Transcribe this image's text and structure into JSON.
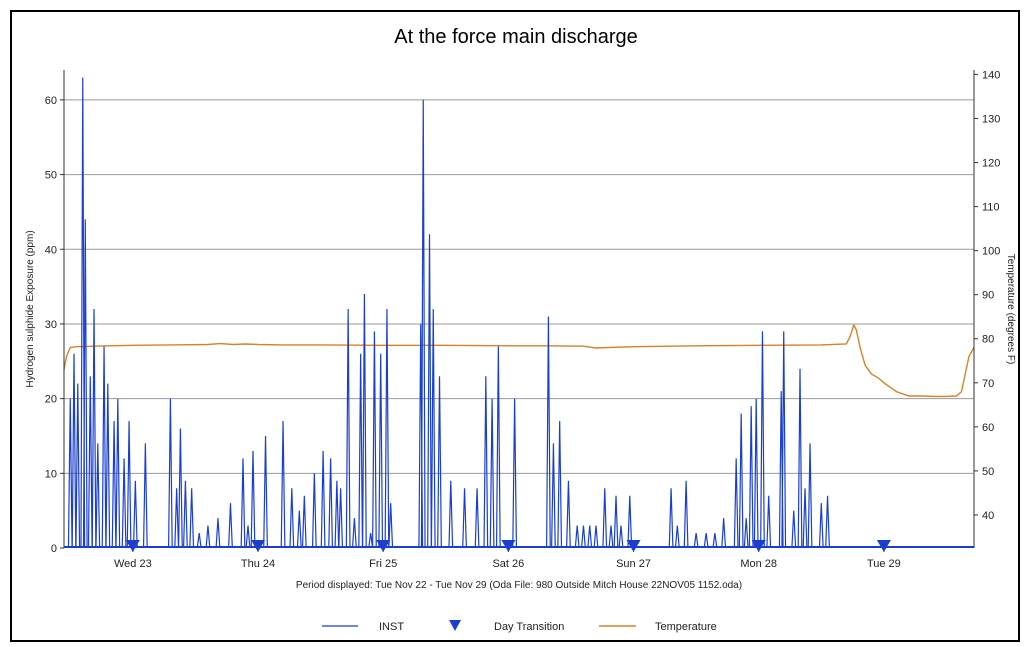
{
  "chart_data": {
    "type": "line",
    "title": "At the force main discharge",
    "caption": "Period displayed: Tue Nov 22 - Tue Nov 29  (Oda File: 980 Outside Mitch House 22NOV05 1152.oda)",
    "x_unit": "days from Tue Nov 22 00:00",
    "xlim": [
      0.45,
      7.72
    ],
    "x_ticks": [
      {
        "x": 1.0,
        "label": "Wed 23"
      },
      {
        "x": 2.0,
        "label": "Thu 24"
      },
      {
        "x": 3.0,
        "label": "Fri 25"
      },
      {
        "x": 4.0,
        "label": "Sat 26"
      },
      {
        "x": 5.0,
        "label": "Sun 27"
      },
      {
        "x": 6.0,
        "label": "Mon 28"
      },
      {
        "x": 7.0,
        "label": "Tue 29"
      }
    ],
    "ylabel_left": "Hydrogen sulphide Exposure (ppm)",
    "ylim_left": [
      0,
      64
    ],
    "yticks_left": [
      0,
      10,
      20,
      30,
      40,
      50,
      60
    ],
    "ylabel_right": "Temperature (degrees F)",
    "ylim_right": [
      32.5,
      141
    ],
    "yticks_right": [
      40,
      50,
      60,
      70,
      80,
      90,
      100,
      110,
      120,
      130,
      140
    ],
    "grid": "horizontal",
    "legend_position": "bottom",
    "legend": [
      "INST",
      "Day Transition",
      "Temperature"
    ],
    "colors": {
      "inst": "#1a3fd0",
      "temperature": "#d8812a",
      "marker": "#1a3fd0",
      "grid": "#9a9a9a"
    },
    "series": [
      {
        "name": "INST",
        "axis": "left",
        "peaks": [
          [
            0.5,
            20
          ],
          [
            0.53,
            26
          ],
          [
            0.56,
            22
          ],
          [
            0.6,
            63
          ],
          [
            0.62,
            44
          ],
          [
            0.66,
            23
          ],
          [
            0.69,
            32
          ],
          [
            0.72,
            14
          ],
          [
            0.77,
            27
          ],
          [
            0.8,
            22
          ],
          [
            0.85,
            17
          ],
          [
            0.88,
            20
          ],
          [
            0.93,
            12
          ],
          [
            0.97,
            17
          ],
          [
            1.02,
            9
          ],
          [
            1.1,
            14
          ],
          [
            1.3,
            20
          ],
          [
            1.35,
            8
          ],
          [
            1.38,
            16
          ],
          [
            1.42,
            9
          ],
          [
            1.47,
            8
          ],
          [
            1.53,
            2
          ],
          [
            1.6,
            3
          ],
          [
            1.68,
            4
          ],
          [
            1.78,
            6
          ],
          [
            1.88,
            12
          ],
          [
            1.92,
            3
          ],
          [
            1.96,
            13
          ],
          [
            2.06,
            15
          ],
          [
            2.2,
            17
          ],
          [
            2.27,
            8
          ],
          [
            2.33,
            5
          ],
          [
            2.37,
            7
          ],
          [
            2.45,
            10
          ],
          [
            2.52,
            13
          ],
          [
            2.58,
            12
          ],
          [
            2.63,
            9
          ],
          [
            2.66,
            8
          ],
          [
            2.72,
            32
          ],
          [
            2.77,
            4
          ],
          [
            2.82,
            26
          ],
          [
            2.85,
            34
          ],
          [
            2.9,
            2
          ],
          [
            2.93,
            29
          ],
          [
            2.98,
            26
          ],
          [
            3.03,
            32
          ],
          [
            3.06,
            6
          ],
          [
            3.3,
            30
          ],
          [
            3.32,
            60
          ],
          [
            3.37,
            42
          ],
          [
            3.4,
            32
          ],
          [
            3.45,
            23
          ],
          [
            3.54,
            9
          ],
          [
            3.65,
            8
          ],
          [
            3.75,
            8
          ],
          [
            3.82,
            23
          ],
          [
            3.87,
            20
          ],
          [
            3.92,
            27
          ],
          [
            4.05,
            20
          ],
          [
            4.32,
            31
          ],
          [
            4.36,
            14
          ],
          [
            4.41,
            17
          ],
          [
            4.48,
            9
          ],
          [
            4.55,
            3
          ],
          [
            4.6,
            3
          ],
          [
            4.65,
            3
          ],
          [
            4.7,
            3
          ],
          [
            4.77,
            8
          ],
          [
            4.82,
            3
          ],
          [
            4.86,
            7
          ],
          [
            4.9,
            3
          ],
          [
            4.97,
            7
          ],
          [
            5.3,
            8
          ],
          [
            5.35,
            3
          ],
          [
            5.42,
            9
          ],
          [
            5.5,
            2
          ],
          [
            5.58,
            2
          ],
          [
            5.65,
            2
          ],
          [
            5.72,
            4
          ],
          [
            5.82,
            12
          ],
          [
            5.86,
            18
          ],
          [
            5.9,
            4
          ],
          [
            5.94,
            19
          ],
          [
            5.98,
            20
          ],
          [
            6.03,
            29
          ],
          [
            6.08,
            7
          ],
          [
            6.18,
            21
          ],
          [
            6.2,
            29
          ],
          [
            6.28,
            5
          ],
          [
            6.33,
            24
          ],
          [
            6.37,
            8
          ],
          [
            6.41,
            14
          ],
          [
            6.5,
            6
          ],
          [
            6.55,
            7
          ]
        ]
      },
      {
        "name": "Temperature",
        "axis": "right",
        "points": [
          [
            0.45,
            73
          ],
          [
            0.47,
            76
          ],
          [
            0.5,
            78
          ],
          [
            0.55,
            78.2
          ],
          [
            0.8,
            78.4
          ],
          [
            1.0,
            78.5
          ],
          [
            1.3,
            78.6
          ],
          [
            1.6,
            78.7
          ],
          [
            1.7,
            78.9
          ],
          [
            1.8,
            78.7
          ],
          [
            1.9,
            78.8
          ],
          [
            2.0,
            78.7
          ],
          [
            2.2,
            78.6
          ],
          [
            2.5,
            78.6
          ],
          [
            3.0,
            78.5
          ],
          [
            3.5,
            78.5
          ],
          [
            4.0,
            78.4
          ],
          [
            4.3,
            78.4
          ],
          [
            4.6,
            78.3
          ],
          [
            4.7,
            77.9
          ],
          [
            4.8,
            78.0
          ],
          [
            5.0,
            78.2
          ],
          [
            5.3,
            78.3
          ],
          [
            5.5,
            78.4
          ],
          [
            6.0,
            78.5
          ],
          [
            6.5,
            78.6
          ],
          [
            6.7,
            78.8
          ],
          [
            6.73,
            80.5
          ],
          [
            6.76,
            83.1
          ],
          [
            6.78,
            82.0
          ],
          [
            6.81,
            78.0
          ],
          [
            6.85,
            74.0
          ],
          [
            6.9,
            72.0
          ],
          [
            6.96,
            71.0
          ],
          [
            7.0,
            70.0
          ],
          [
            7.05,
            69.0
          ],
          [
            7.1,
            68.0
          ],
          [
            7.2,
            67.0
          ],
          [
            7.3,
            67.0
          ],
          [
            7.4,
            66.9
          ],
          [
            7.5,
            66.9
          ],
          [
            7.58,
            67.0
          ],
          [
            7.62,
            68.0
          ],
          [
            7.65,
            72.0
          ],
          [
            7.68,
            76.0
          ],
          [
            7.72,
            78.0
          ]
        ]
      },
      {
        "name": "Day Transition",
        "axis": "left",
        "x": [
          1.0,
          2.0,
          3.0,
          4.0,
          5.0,
          6.0,
          7.0
        ]
      }
    ]
  }
}
